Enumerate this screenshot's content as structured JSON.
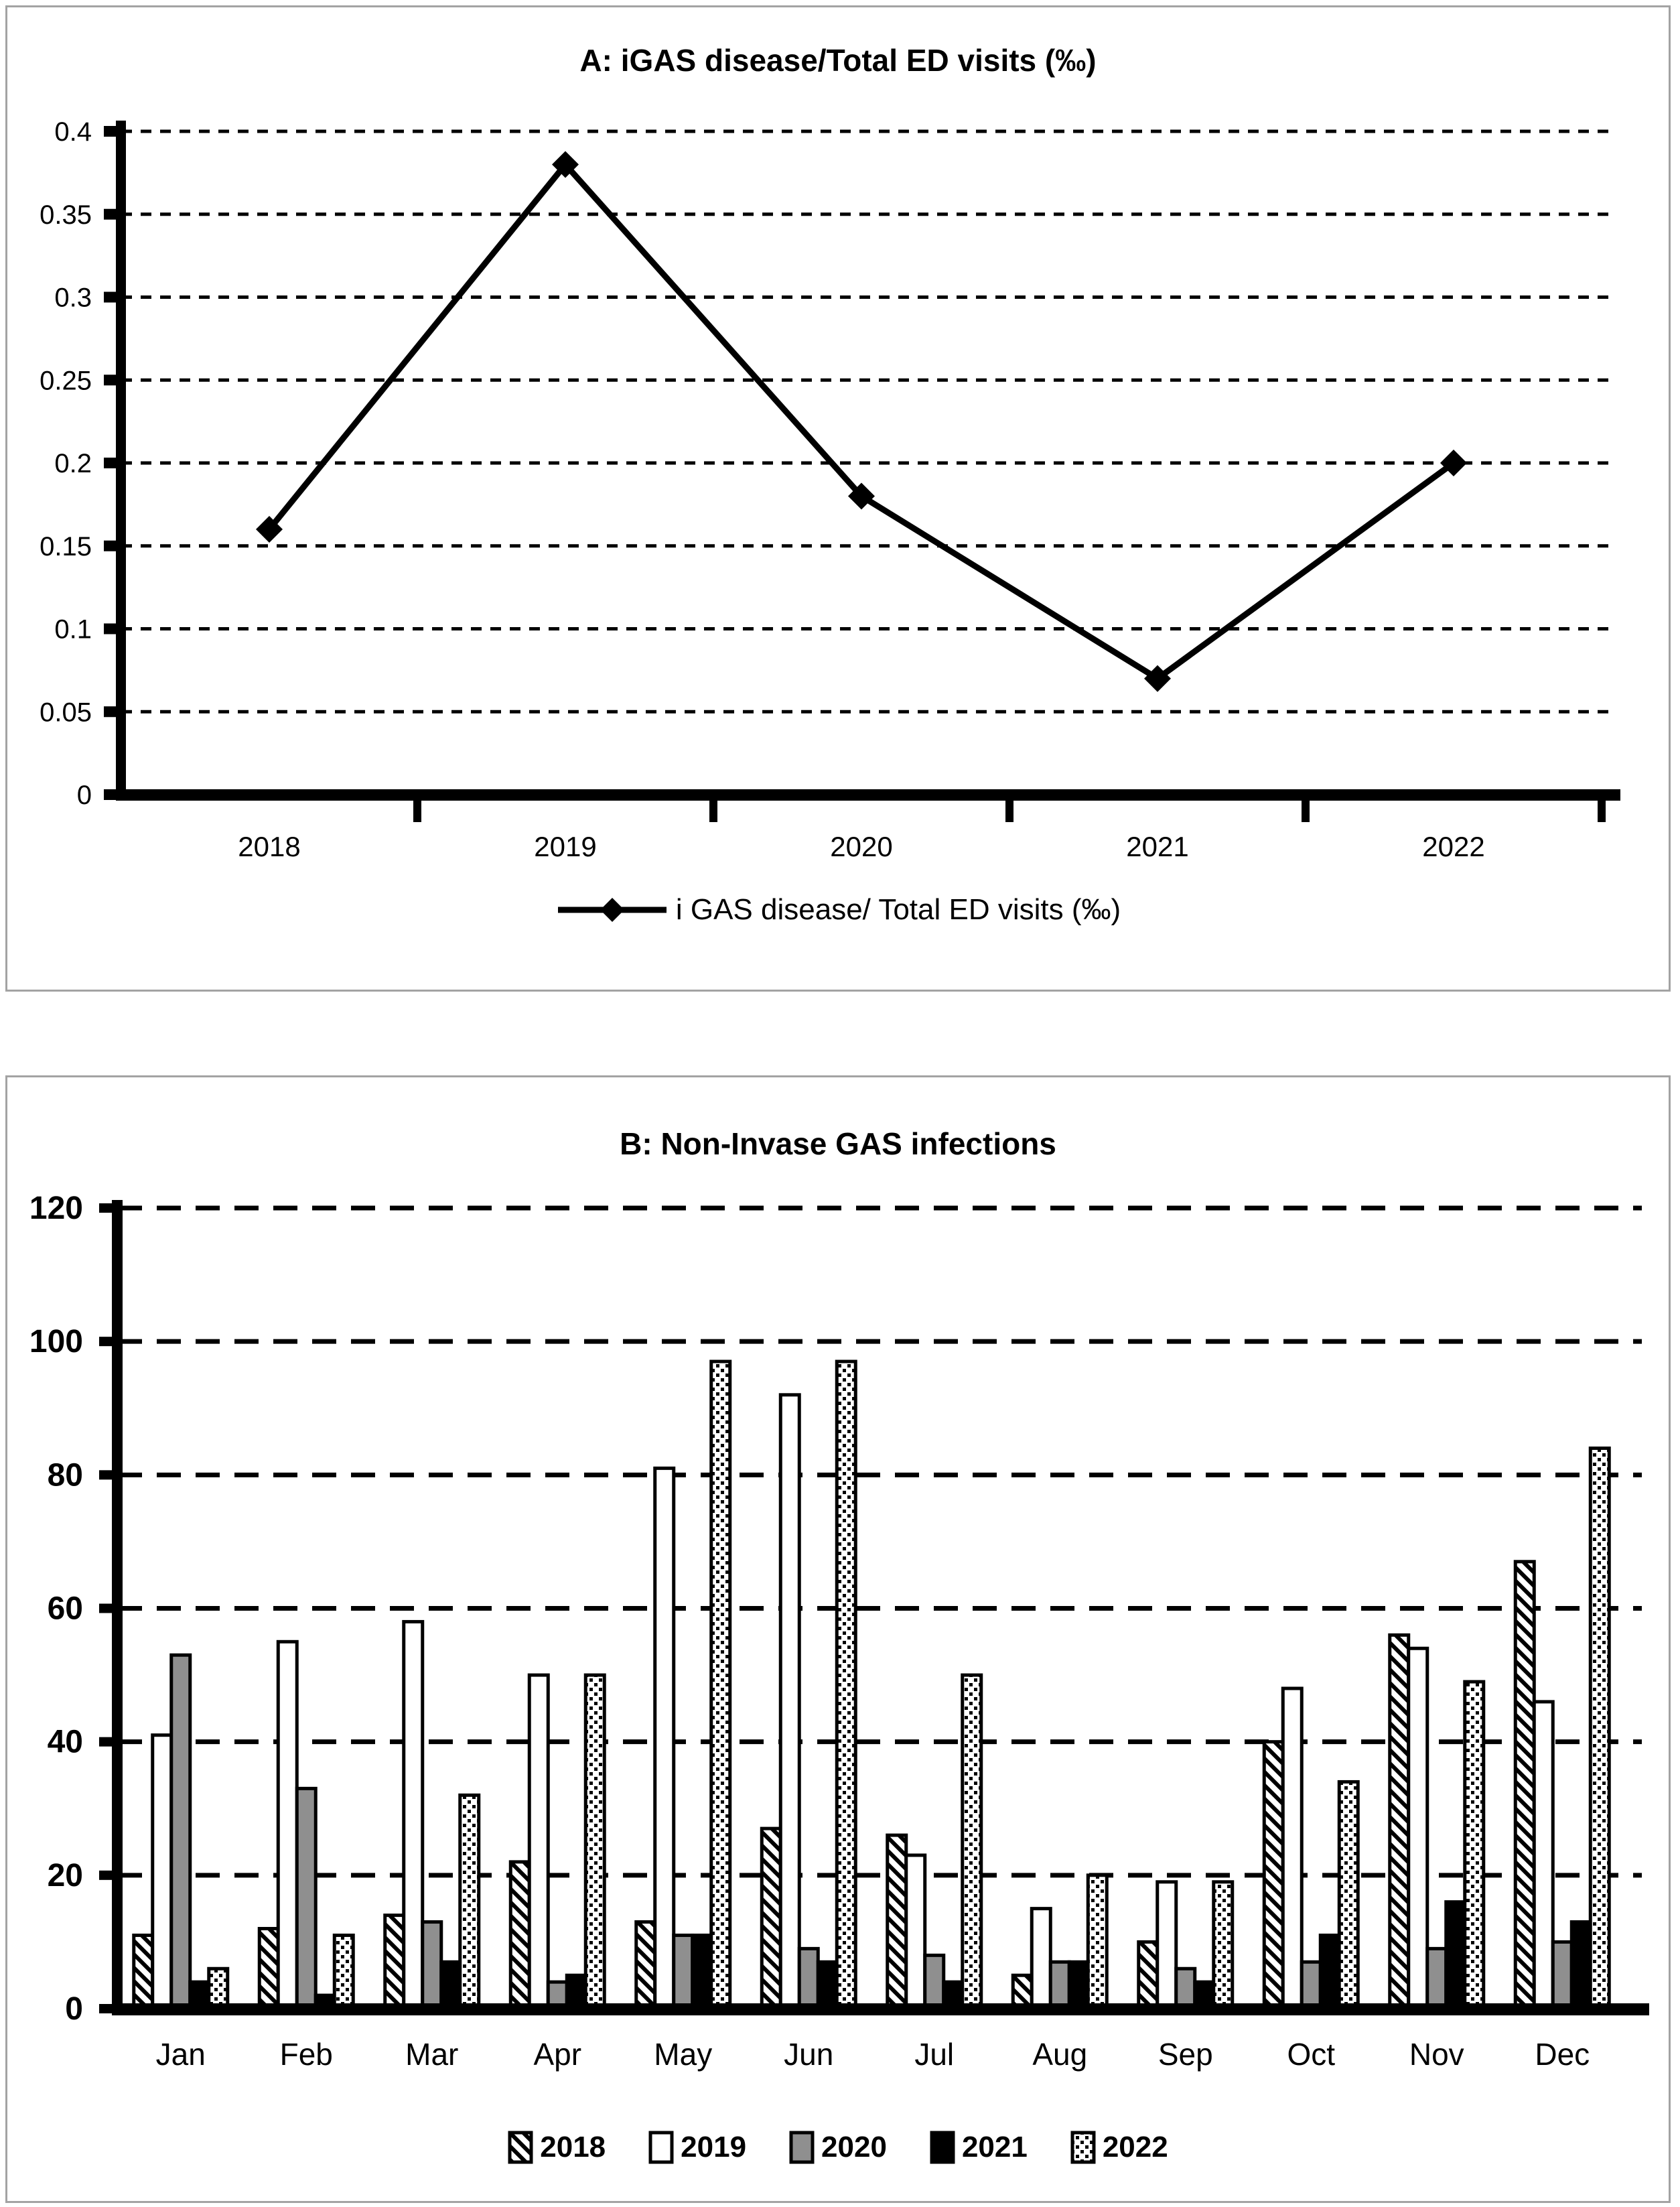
{
  "chart_data": [
    {
      "type": "line",
      "title": "A: iGAS disease/Total ED visits (‰)",
      "x": [
        "2018",
        "2019",
        "2020",
        "2021",
        "2022"
      ],
      "series": [
        {
          "name": "i GAS disease/ Total ED visits (‰)",
          "values": [
            0.16,
            0.38,
            0.18,
            0.07,
            0.2
          ]
        }
      ],
      "ylim": [
        0,
        0.4
      ],
      "ytick": 0.05,
      "xlabel": "",
      "ylabel": "",
      "grid": "dashed horizontal",
      "legend_position": "bottom",
      "marker": "diamond",
      "line_color": "#000000"
    },
    {
      "type": "bar",
      "title": "B: Non-Invase GAS infections",
      "categories": [
        "Jan",
        "Feb",
        "Mar",
        "Apr",
        "May",
        "Jun",
        "Jul",
        "Aug",
        "Sep",
        "Oct",
        "Nov",
        "Dec"
      ],
      "series": [
        {
          "name": "2018",
          "pattern": "diagonal-hatch",
          "values": [
            11,
            12,
            14,
            22,
            13,
            27,
            26,
            5,
            10,
            40,
            56,
            67
          ]
        },
        {
          "name": "2019",
          "pattern": "white",
          "values": [
            41,
            55,
            58,
            50,
            81,
            92,
            23,
            15,
            19,
            48,
            54,
            46
          ]
        },
        {
          "name": "2020",
          "pattern": "solid-gray",
          "color": "#8f8f8f",
          "values": [
            53,
            33,
            13,
            4,
            11,
            9,
            8,
            7,
            6,
            7,
            9,
            10
          ]
        },
        {
          "name": "2021",
          "pattern": "solid-black",
          "color": "#000000",
          "values": [
            4,
            2,
            7,
            5,
            11,
            7,
            4,
            7,
            4,
            11,
            16,
            13
          ]
        },
        {
          "name": "2022",
          "pattern": "dotted",
          "values": [
            6,
            11,
            32,
            50,
            97,
            97,
            50,
            20,
            19,
            34,
            49,
            84
          ]
        }
      ],
      "ylim": [
        0,
        120
      ],
      "ytick": 20,
      "xlabel": "",
      "ylabel": "",
      "grid": "dashed horizontal",
      "legend_position": "bottom"
    }
  ]
}
